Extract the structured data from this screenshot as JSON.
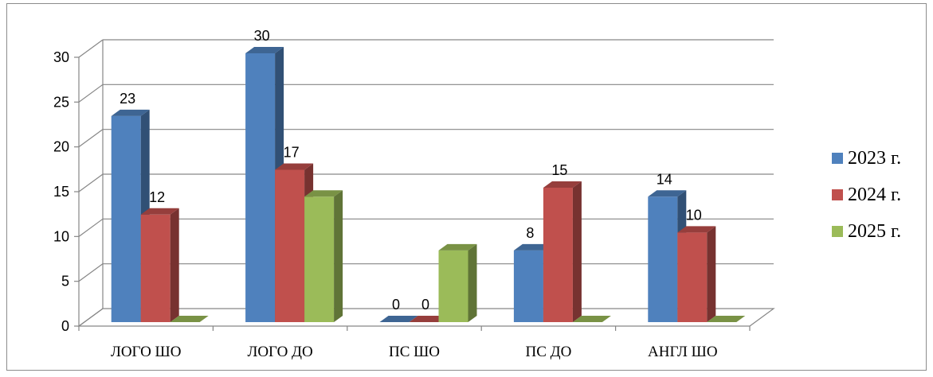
{
  "chart_data": {
    "type": "bar",
    "categories": [
      "ЛОГО ШО",
      "ЛОГО ДО",
      "ПС ШО",
      "ПС ДО",
      "АНГЛ ШО"
    ],
    "series": [
      {
        "name": "2023 г.",
        "values": [
          23,
          30,
          0,
          8,
          14
        ],
        "color": "#4f81bd"
      },
      {
        "name": "2024 г.",
        "values": [
          12,
          17,
          0,
          15,
          10
        ],
        "color": "#c0504d"
      },
      {
        "name": "2025 г.",
        "values": [
          0,
          14,
          8,
          0,
          0
        ],
        "color": "#9bbb59"
      }
    ],
    "data_labels": [
      [
        "23",
        "30",
        "0",
        "8",
        "14"
      ],
      [
        "12",
        "17",
        "0",
        "15",
        "10"
      ],
      [
        "",
        "",
        "",
        "",
        ""
      ]
    ],
    "ylim": [
      0,
      30
    ],
    "yticks": [
      0,
      5,
      10,
      15,
      20,
      25,
      30
    ],
    "grid": true,
    "legend_position": "right",
    "style": "3d-clustered-column"
  }
}
